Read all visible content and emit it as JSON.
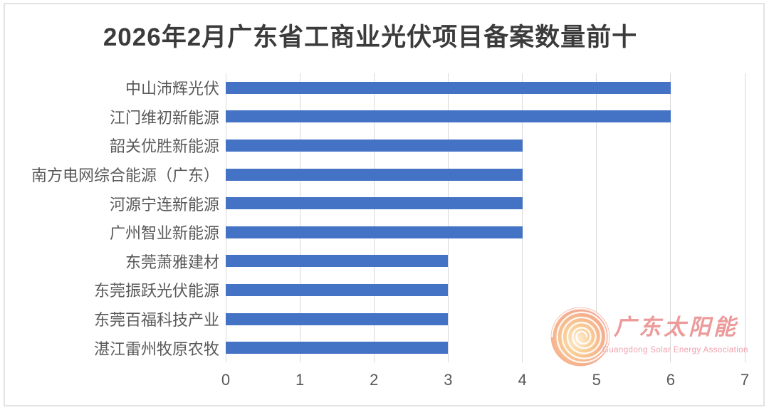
{
  "title": "2026年2月广东省工商业光伏项目备案数量前十",
  "chart_data": {
    "type": "bar",
    "orientation": "horizontal",
    "title": "2026年2月广东省工商业光伏项目备案数量前十",
    "categories": [
      "中山沛辉光伏",
      "江门维初新能源",
      "韶关优胜新能源",
      "南方电网综合能源（广东）",
      "河源宁连新能源",
      "广州智业新能源",
      "东莞萧雅建材",
      "东莞振跃光伏能源",
      "东莞百福科技产业",
      "湛江雷州牧原农牧"
    ],
    "values": [
      6,
      6,
      4,
      4,
      4,
      4,
      3,
      3,
      3,
      3
    ],
    "xlabel": "",
    "ylabel": "",
    "xlim": [
      0,
      7
    ],
    "x_ticks": [
      0,
      1,
      2,
      3,
      4,
      5,
      6,
      7
    ],
    "grid": true,
    "legend": "none",
    "bar_color": "#4472c4",
    "gridline_color": "#d9d9d9",
    "label_color": "#595959",
    "title_color": "#3b3b3b"
  },
  "logo": {
    "icon": "solar-swirl-icon",
    "text_cn": "广东太阳能",
    "text_en": "Guangdong Solar Energy Association",
    "text_color": "#ec9a9a",
    "swirl_colors": [
      "#fdf0dc",
      "#f9ce96",
      "#f5ae8e",
      "#f19e97"
    ]
  }
}
